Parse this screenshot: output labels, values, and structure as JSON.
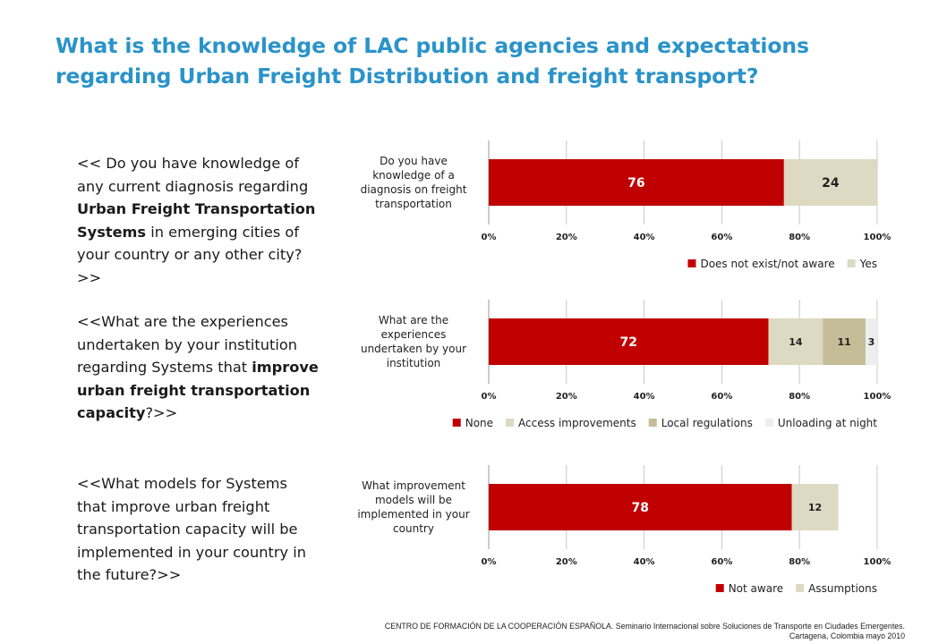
{
  "page": {
    "title": "What is the knowledge of LAC public agencies and expectations regarding Urban Freight Distribution and freight transport?"
  },
  "questions": [
    {
      "p1": "<< Do you have knowledge of any current diagnosis regarding ",
      "b1": "Urban Freight Transportation Systems",
      "p2": " in emerging cities of your country or any other city? >>",
      "b2": "",
      "p3": ""
    },
    {
      "p1": "<<What are the experiences undertaken by your institution regarding Systems that ",
      "b1": "improve urban freight transportation capacity",
      "p2": "?>>",
      "b2": "",
      "p3": ""
    },
    {
      "p1": "<<What models for Systems that improve urban freight transportation capacity will be implemented in your country in the future?>>",
      "b1": "",
      "p2": "",
      "b2": "",
      "p3": ""
    }
  ],
  "chart_data": [
    {
      "type": "bar",
      "orientation": "horizontal",
      "stacked": true,
      "category_lines": [
        "Do you have",
        "knowledge of a",
        "diagnosis on freight",
        "transportation"
      ],
      "categories": [
        "Do you have knowledge of a diagnosis on freight transportation"
      ],
      "xticks": [
        "0%",
        "20%",
        "40%",
        "60%",
        "80%",
        "100%"
      ],
      "xlim": [
        0,
        100
      ],
      "legend_position": "bottom-right",
      "series": [
        {
          "name": "Does not exist/not aware",
          "values": [
            76
          ],
          "label": "76",
          "color": "#c00000",
          "label_color": "#ffffff"
        },
        {
          "name": "Yes",
          "values": [
            24
          ],
          "label": "24",
          "color": "#ddd9c3",
          "label_color": "#222222"
        }
      ]
    },
    {
      "type": "bar",
      "orientation": "horizontal",
      "stacked": true,
      "category_lines": [
        "What are the",
        "experiences",
        "undertaken by your",
        "institution"
      ],
      "categories": [
        "What are the experiences undertaken by your institution"
      ],
      "xticks": [
        "0%",
        "20%",
        "40%",
        "60%",
        "80%",
        "100%"
      ],
      "xlim": [
        0,
        100
      ],
      "legend_position": "bottom",
      "series": [
        {
          "name": "None",
          "values": [
            72
          ],
          "label": "72",
          "color": "#c00000",
          "label_color": "#ffffff"
        },
        {
          "name": "Access improvements",
          "values": [
            14
          ],
          "label": "14",
          "color": "#ddd9c3",
          "label_color": "#222222"
        },
        {
          "name": "Local regulations",
          "values": [
            11
          ],
          "label": "11",
          "color": "#c4bd97",
          "label_color": "#222222"
        },
        {
          "name": "Unloading at night",
          "values": [
            3
          ],
          "label": "3",
          "color": "#eeeeee",
          "label_color": "#222222"
        }
      ]
    },
    {
      "type": "bar",
      "orientation": "horizontal",
      "stacked": true,
      "category_lines": [
        "What improvement",
        "models will be",
        "implemented in your",
        "country"
      ],
      "categories": [
        "What improvement models will be implemented in your country"
      ],
      "xticks": [
        "0%",
        "20%",
        "40%",
        "60%",
        "80%",
        "100%"
      ],
      "xlim": [
        0,
        100
      ],
      "legend_position": "bottom-right",
      "series": [
        {
          "name": "Not aware",
          "values": [
            78
          ],
          "label": "78",
          "color": "#c00000",
          "label_color": "#ffffff"
        },
        {
          "name": "Assumptions",
          "values": [
            12
          ],
          "label": "12",
          "color": "#ddd9c3",
          "label_color": "#222222"
        }
      ]
    }
  ],
  "footer": {
    "line1": "CENTRO DE FORMACIÓN DE LA COOPERACIÓN ESPAÑOLA. Seminario Internacional sobre Soluciones de Transporte en Ciudades Emergentes.",
    "line2": "Cartagena, Colombia mayo 2010"
  }
}
